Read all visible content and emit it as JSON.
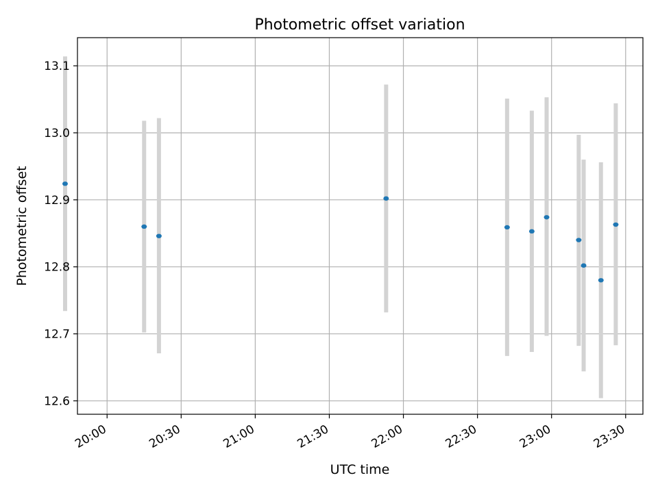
{
  "chart_data": {
    "type": "scatter",
    "title": "Photometric offset variation",
    "xlabel": "UTC time",
    "ylabel": "Photometric offset",
    "x_unit": "HH:MM UTC",
    "xlim": [
      "19:48",
      "23:37"
    ],
    "ylim": [
      12.58,
      13.142
    ],
    "x_ticks": [
      "20:00",
      "20:30",
      "21:00",
      "21:30",
      "22:00",
      "22:30",
      "23:00",
      "23:30"
    ],
    "y_ticks": [
      "12.6",
      "12.7",
      "12.8",
      "12.9",
      "13.0",
      "13.1"
    ],
    "grid": true,
    "colors": {
      "point": "#1f77b4",
      "errorbar": "#d3d3d3",
      "grid": "#b0b0b0"
    },
    "points": [
      {
        "x": "19:43",
        "y": 12.924,
        "ylo": 12.734,
        "yhi": 13.114
      },
      {
        "x": "20:15",
        "y": 12.86,
        "ylo": 12.702,
        "yhi": 13.018
      },
      {
        "x": "20:21",
        "y": 12.846,
        "ylo": 12.671,
        "yhi": 13.022
      },
      {
        "x": "21:53",
        "y": 12.902,
        "ylo": 12.732,
        "yhi": 13.072
      },
      {
        "x": "22:42",
        "y": 12.859,
        "ylo": 12.667,
        "yhi": 13.051
      },
      {
        "x": "22:52",
        "y": 12.853,
        "ylo": 12.673,
        "yhi": 13.033
      },
      {
        "x": "22:58",
        "y": 12.874,
        "ylo": 12.697,
        "yhi": 13.053
      },
      {
        "x": "23:11",
        "y": 12.84,
        "ylo": 12.682,
        "yhi": 12.997
      },
      {
        "x": "23:13",
        "y": 12.802,
        "ylo": 12.644,
        "yhi": 12.96
      },
      {
        "x": "23:20",
        "y": 12.78,
        "ylo": 12.604,
        "yhi": 12.956
      },
      {
        "x": "23:26",
        "y": 12.863,
        "ylo": 12.683,
        "yhi": 13.044
      }
    ]
  }
}
